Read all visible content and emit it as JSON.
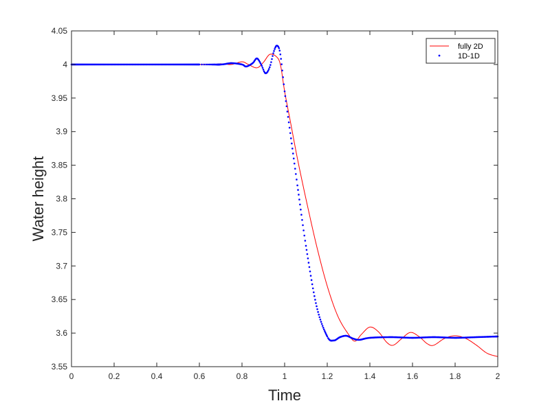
{
  "chart_data": {
    "type": "line",
    "title": "",
    "xlabel": "Time",
    "ylabel": "Water height",
    "xlim": [
      0,
      2
    ],
    "ylim": [
      3.55,
      4.05
    ],
    "x_ticks": [
      "0",
      "0.2",
      "0.4",
      "0.6",
      "0.8",
      "1",
      "1.2",
      "1.4",
      "1.6",
      "1.8",
      "2"
    ],
    "y_ticks": [
      "3.55",
      "3.6",
      "3.65",
      "3.7",
      "3.75",
      "3.8",
      "3.85",
      "3.9",
      "3.95",
      "4",
      "4.05"
    ],
    "legend_position": "top-right",
    "series": [
      {
        "name": "fully 2D",
        "color": "#ff0000",
        "style": "line",
        "points": [
          [
            0,
            4.0
          ],
          [
            0.6,
            4.0
          ],
          [
            0.7,
            4.001
          ],
          [
            0.75,
            4.0
          ],
          [
            0.8,
            4.004
          ],
          [
            0.83,
            4.0
          ],
          [
            0.87,
            3.995
          ],
          [
            0.9,
            4.003
          ],
          [
            0.93,
            4.015
          ],
          [
            0.96,
            4.012
          ],
          [
            0.98,
            4.0
          ],
          [
            1.0,
            3.96
          ],
          [
            1.03,
            3.91
          ],
          [
            1.06,
            3.86
          ],
          [
            1.1,
            3.8
          ],
          [
            1.15,
            3.73
          ],
          [
            1.2,
            3.67
          ],
          [
            1.25,
            3.625
          ],
          [
            1.3,
            3.598
          ],
          [
            1.33,
            3.588
          ],
          [
            1.36,
            3.598
          ],
          [
            1.4,
            3.609
          ],
          [
            1.44,
            3.602
          ],
          [
            1.48,
            3.586
          ],
          [
            1.51,
            3.582
          ],
          [
            1.55,
            3.592
          ],
          [
            1.59,
            3.601
          ],
          [
            1.63,
            3.595
          ],
          [
            1.67,
            3.584
          ],
          [
            1.7,
            3.582
          ],
          [
            1.75,
            3.592
          ],
          [
            1.8,
            3.596
          ],
          [
            1.85,
            3.592
          ],
          [
            1.9,
            3.582
          ],
          [
            1.95,
            3.57
          ],
          [
            2.0,
            3.565
          ]
        ]
      },
      {
        "name": "1D-1D",
        "color": "#0000ff",
        "style": "dots",
        "points": [
          [
            0,
            4.0
          ],
          [
            0.6,
            4.0
          ],
          [
            0.7,
            4.0
          ],
          [
            0.75,
            4.002
          ],
          [
            0.8,
            4.0
          ],
          [
            0.82,
            3.997
          ],
          [
            0.85,
            4.002
          ],
          [
            0.87,
            4.009
          ],
          [
            0.89,
            4.0
          ],
          [
            0.91,
            3.987
          ],
          [
            0.93,
            3.996
          ],
          [
            0.95,
            4.02
          ],
          [
            0.965,
            4.028
          ],
          [
            0.98,
            4.015
          ],
          [
            1.0,
            3.96
          ],
          [
            1.03,
            3.89
          ],
          [
            1.06,
            3.82
          ],
          [
            1.1,
            3.73
          ],
          [
            1.15,
            3.64
          ],
          [
            1.2,
            3.595
          ],
          [
            1.23,
            3.589
          ],
          [
            1.26,
            3.594
          ],
          [
            1.29,
            3.596
          ],
          [
            1.32,
            3.592
          ],
          [
            1.35,
            3.59
          ],
          [
            1.4,
            3.593
          ],
          [
            1.5,
            3.594
          ],
          [
            1.6,
            3.593
          ],
          [
            1.7,
            3.594
          ],
          [
            1.8,
            3.593
          ],
          [
            1.9,
            3.594
          ],
          [
            2.0,
            3.595
          ]
        ]
      }
    ]
  }
}
